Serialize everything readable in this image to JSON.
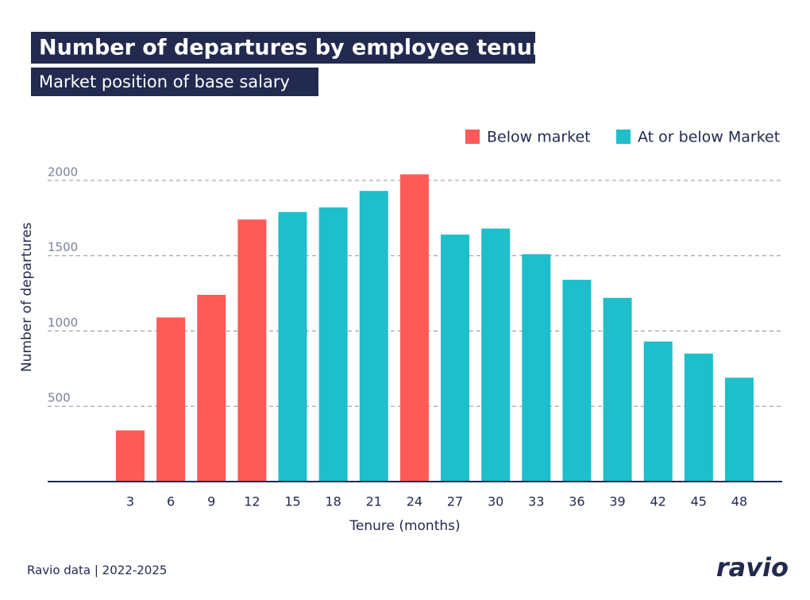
{
  "chart_data": {
    "type": "bar",
    "title": "Number of departures by employee tenure",
    "subtitle": "Market position of base salary",
    "x_label": "Tenure (months)",
    "y_label": "Number of departures",
    "categories": [
      "3",
      "6",
      "9",
      "12",
      "15",
      "18",
      "21",
      "24",
      "27",
      "30",
      "33",
      "36",
      "39",
      "42",
      "45",
      "48"
    ],
    "series": [
      {
        "name": "Below market",
        "color": "#fe5b58",
        "values": [
          340,
          1090,
          1240,
          1740,
          null,
          null,
          null,
          2040,
          null,
          null,
          null,
          null,
          null,
          null,
          null,
          null
        ]
      },
      {
        "name": "At or below Market",
        "color": "#1ebfcb",
        "values": [
          null,
          null,
          null,
          null,
          1790,
          1820,
          1930,
          null,
          1640,
          1680,
          1510,
          1340,
          1220,
          930,
          850,
          690
        ]
      }
    ],
    "ylim": [
      0,
      2100
    ],
    "yticks": [
      500,
      1000,
      1500,
      2000
    ],
    "grid": true,
    "source": "Ravio data | 2022-2025",
    "logo": "ravio"
  }
}
